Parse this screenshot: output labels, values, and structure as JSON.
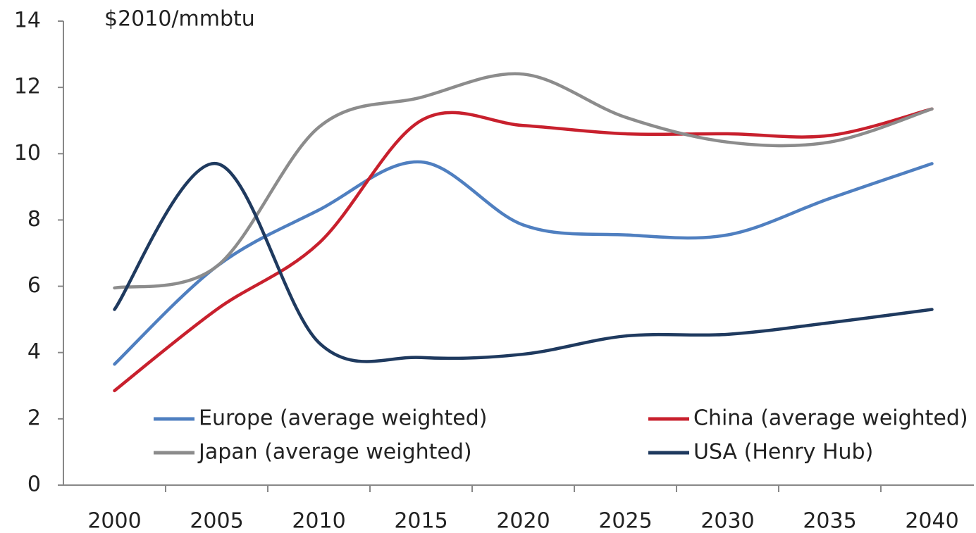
{
  "chart_data": {
    "type": "line",
    "y_label": "$2010/mmbtu",
    "categories": [
      "2000",
      "2005",
      "2010",
      "2015",
      "2020",
      "2025",
      "2030",
      "2035",
      "2040"
    ],
    "series": [
      {
        "name": "Europe (average weighted)",
        "color": "#4f7fc0",
        "values": [
          3.65,
          6.6,
          8.3,
          9.75,
          7.85,
          7.55,
          7.55,
          8.65,
          9.7
        ]
      },
      {
        "name": "China (average weighted)",
        "color": "#c8202d",
        "values": [
          2.85,
          5.3,
          7.3,
          11.0,
          10.85,
          10.6,
          10.6,
          10.55,
          11.35
        ]
      },
      {
        "name": "Japan (average weighted)",
        "color": "#8c8c8c",
        "values": [
          5.95,
          6.6,
          10.8,
          11.7,
          12.4,
          11.1,
          10.35,
          10.35,
          11.35
        ]
      },
      {
        "name": "USA (Henry Hub)",
        "color": "#1f3a5f",
        "values": [
          5.3,
          9.7,
          4.3,
          3.85,
          3.95,
          4.5,
          4.55,
          4.9,
          5.3
        ]
      }
    ],
    "ylim": [
      0,
      14
    ],
    "yticks": [
      0,
      2,
      4,
      6,
      8,
      10,
      12,
      14
    ]
  }
}
